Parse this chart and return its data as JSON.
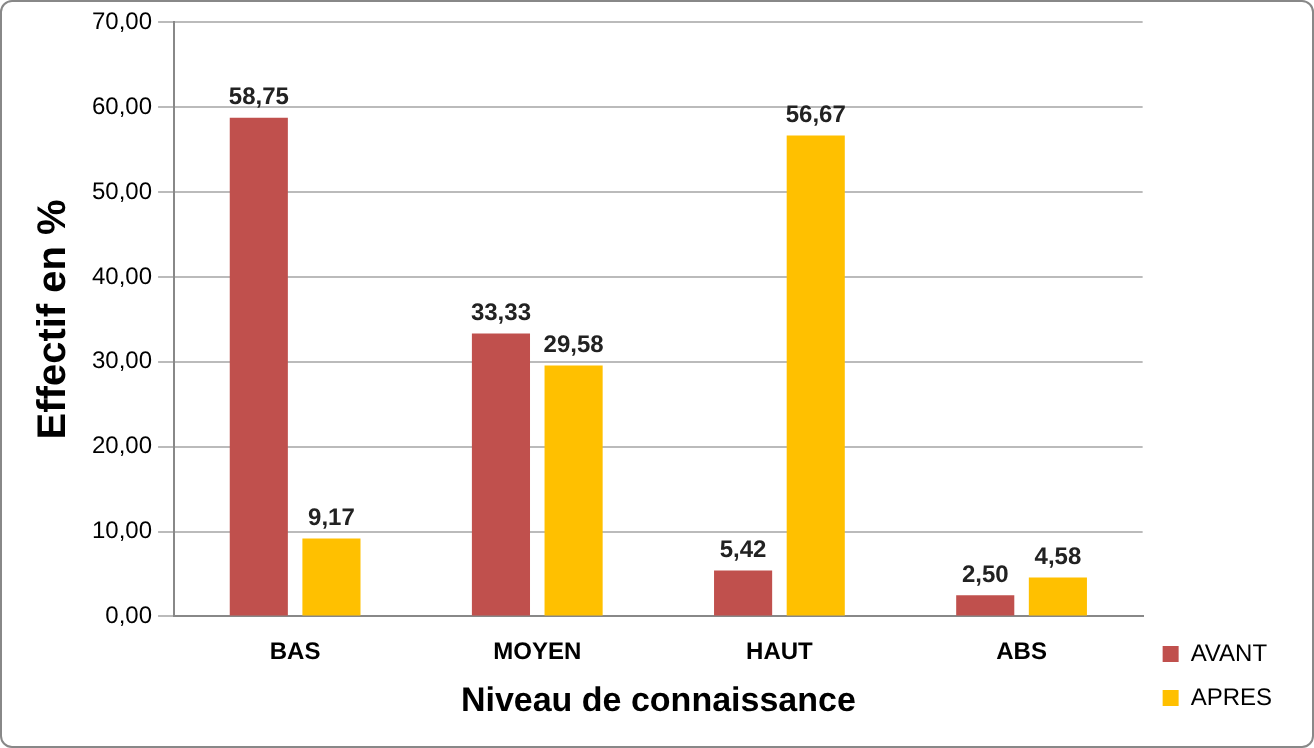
{
  "chart_data": {
    "type": "bar",
    "xlabel": "Niveau de connaissance",
    "ylabel": "Effectif en %",
    "categories": [
      "BAS",
      "MOYEN",
      "HAUT",
      "ABS"
    ],
    "series": [
      {
        "name": "AVANT",
        "color": "#c0504d",
        "values": [
          58.75,
          33.33,
          5.42,
          2.5
        ],
        "value_labels": [
          "58,75",
          "33,33",
          "5,42",
          "2,50"
        ]
      },
      {
        "name": "APRES",
        "color": "#ffc000",
        "values": [
          9.17,
          29.58,
          56.67,
          4.58
        ],
        "value_labels": [
          "9,17",
          "29,58",
          "56,67",
          "4,58"
        ]
      }
    ],
    "ylim": [
      0,
      70
    ],
    "yticks": [
      {
        "value": 0,
        "label": "0,00"
      },
      {
        "value": 10,
        "label": "10,00"
      },
      {
        "value": 20,
        "label": "20,00"
      },
      {
        "value": 30,
        "label": "30,00"
      },
      {
        "value": 40,
        "label": "40,00"
      },
      {
        "value": 50,
        "label": "50,00"
      },
      {
        "value": 60,
        "label": "60,00"
      },
      {
        "value": 70,
        "label": "70,00"
      }
    ],
    "grid": "y",
    "legend": "bottom right"
  }
}
